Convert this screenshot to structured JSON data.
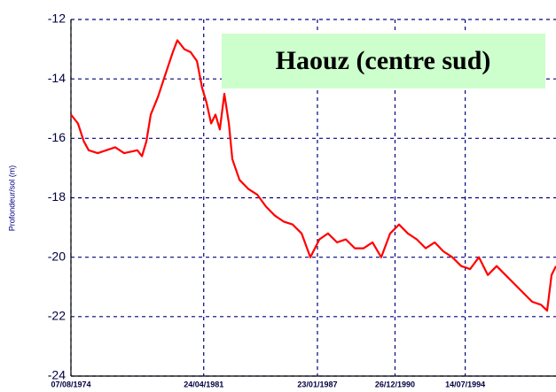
{
  "chart_data": {
    "type": "line",
    "title": "Haouz (centre sud)",
    "y_label": "Profondeur/sol (m)",
    "color": "#ff0000",
    "grid": true,
    "xlim": [
      "1974-08-07",
      "1999-02-15"
    ],
    "xticks": [
      {
        "value": "1974-08-07",
        "label": "07/08/1974"
      },
      {
        "value": "1981-04-24",
        "label": "24/04/1981"
      },
      {
        "value": "1987-01-23",
        "label": "23/01/1987"
      },
      {
        "value": "1990-12-26",
        "label": "26/12/1990"
      },
      {
        "value": "1994-07-14",
        "label": "14/07/1994"
      }
    ],
    "ylim": [
      -24,
      -12
    ],
    "yticks": [
      -12,
      -14,
      -16,
      -18,
      -20,
      -22,
      -24
    ],
    "x": [
      "1974-08-07",
      "1974-12-15",
      "1975-04-01",
      "1975-07-01",
      "1975-12-15",
      "1976-11-01",
      "1977-04-15",
      "1977-12-15",
      "1978-03-10",
      "1978-06-01",
      "1978-08-20",
      "1979-01-01",
      "1979-04-20",
      "1979-10-01",
      "1979-12-25",
      "1980-05-01",
      "1980-08-25",
      "1980-12-20",
      "1981-03-25",
      "1981-06-15",
      "1981-09-08",
      "1981-11-28",
      "1982-02-15",
      "1982-05-10",
      "1982-08-01",
      "1982-10-05",
      "1983-02-15",
      "1983-07-25",
      "1984-01-10",
      "1984-06-20",
      "1984-11-28",
      "1985-05-10",
      "1985-10-22",
      "1986-04-05",
      "1986-09-15",
      "1987-03-01",
      "1987-08-07",
      "1988-01-20",
      "1988-07-01",
      "1988-12-15",
      "1989-05-25",
      "1989-11-05",
      "1990-04-15",
      "1990-09-28",
      "1991-03-10",
      "1991-08-20",
      "1992-02-01",
      "1992-07-15",
      "1992-12-28",
      "1993-06-05",
      "1993-11-18",
      "1994-05-01",
      "1994-10-12",
      "1995-03-25",
      "1995-09-05",
      "1996-02-15",
      "1996-07-28",
      "1997-01-08",
      "1997-06-20",
      "1997-12-02",
      "1998-05-15",
      "1998-09-05",
      "1998-11-25",
      "1999-02-15"
    ],
    "values": [
      -15.2,
      -15.5,
      -16.1,
      -16.4,
      -16.5,
      -16.3,
      -16.5,
      -16.4,
      -16.6,
      -16.1,
      -15.2,
      -14.6,
      -14.0,
      -13.1,
      -12.7,
      -13.0,
      -13.1,
      -13.4,
      -14.3,
      -14.8,
      -15.5,
      -15.2,
      -15.7,
      -14.5,
      -15.5,
      -16.7,
      -17.4,
      -17.7,
      -17.9,
      -18.3,
      -18.6,
      -18.8,
      -18.9,
      -19.2,
      -20.0,
      -19.4,
      -19.2,
      -19.5,
      -19.4,
      -19.7,
      -19.7,
      -19.5,
      -20.0,
      -19.2,
      -18.9,
      -19.2,
      -19.4,
      -19.7,
      -19.5,
      -19.8,
      -20.0,
      -20.3,
      -20.4,
      -20.0,
      -20.6,
      -20.3,
      -20.6,
      -20.9,
      -21.2,
      -21.5,
      -21.6,
      -21.8,
      -20.6,
      -20.3
    ]
  }
}
